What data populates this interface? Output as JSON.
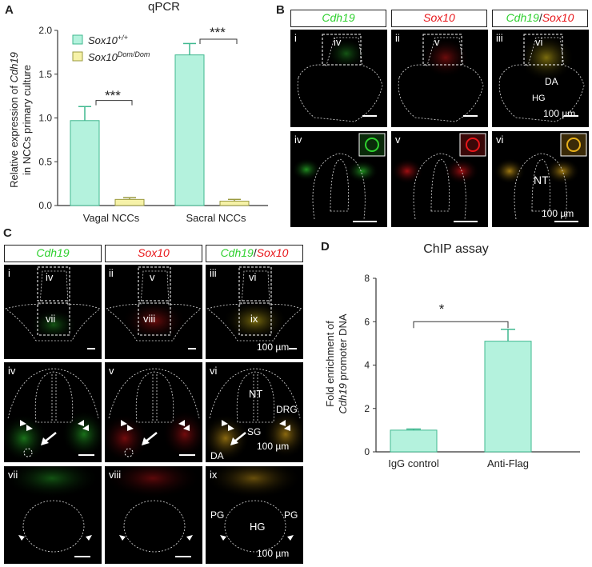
{
  "panels": {
    "A": "A",
    "B": "B",
    "C": "C",
    "D": "D"
  },
  "chartA": {
    "title": "qPCR",
    "ylabel_line1_pre": "Relative expression of ",
    "ylabel_line1_gene": "Cdh19",
    "ylabel_line2": "in NCCs primary culture",
    "legend_wt": "Sox10+/+",
    "legend_wt_base": "Sox10",
    "legend_wt_sup": "+/+",
    "legend_dom_base": "Sox10",
    "legend_dom_sup": "Dom/Dom",
    "sig1": "***",
    "sig2": "***"
  },
  "chartD": {
    "title": "ChIP assay",
    "ylabel_line1": "Fold enrichment of",
    "ylabel_line2_gene": "Cdh19",
    "ylabel_line2_rest": " promoter DNA",
    "sig": "*"
  },
  "chart_data": [
    {
      "type": "bar",
      "panel": "A",
      "title": "qPCR",
      "categories": [
        "Vagal NCCs",
        "Sacral NCCs"
      ],
      "series": [
        {
          "name": "Sox10+/+",
          "values": [
            0.97,
            1.72
          ],
          "errors": [
            0.16,
            0.13
          ],
          "color": "#b4f2dd"
        },
        {
          "name": "Sox10Dom/Dom",
          "values": [
            0.07,
            0.05
          ],
          "errors": [
            0.02,
            0.02
          ],
          "color": "#f6f2a8"
        }
      ],
      "ylabel": "Relative expression of Cdh19 in NCCs primary culture",
      "ylim": [
        0,
        2.0
      ],
      "yticks": [
        "0.0",
        "0.5",
        "1.0",
        "1.5",
        "2.0"
      ],
      "significance": [
        "***",
        "***"
      ],
      "legend": "top-left"
    },
    {
      "type": "bar",
      "panel": "D",
      "title": "ChIP assay",
      "categories": [
        "IgG control",
        "Anti-Flag"
      ],
      "values": [
        1.0,
        5.1
      ],
      "errors": [
        0.05,
        0.55
      ],
      "color": "#b4f2dd",
      "ylabel": "Fold enrichment of Cdh19 promoter DNA",
      "ylim": [
        0,
        8
      ],
      "yticks": [
        "0",
        "2",
        "4",
        "6",
        "8"
      ],
      "significance": [
        "*"
      ]
    }
  ],
  "panelB": {
    "h1_g": "Cdh19",
    "h2_r": "Sox10",
    "h3_g": "Cdh19",
    "h3_sep": "/",
    "h3_r": "Sox10",
    "top_roman": [
      "i",
      "ii",
      "iii"
    ],
    "top_box": [
      "iv",
      "v",
      "vi"
    ],
    "bottom_roman": [
      "iv",
      "v",
      "vi"
    ],
    "DA": "DA",
    "HG": "HG",
    "NT": "NT",
    "scale": "100 µm"
  },
  "panelC": {
    "h1_g": "Cdh19",
    "h2_r": "Sox10",
    "h3_g": "Cdh19",
    "h3_sep": "/",
    "h3_r": "Sox10",
    "top_roman": [
      "i",
      "ii",
      "iii"
    ],
    "top_box_a": [
      "iv",
      "v",
      "vi"
    ],
    "top_box_b": [
      "vii",
      "viii",
      "ix"
    ],
    "mid_roman": [
      "iv",
      "v",
      "vi"
    ],
    "bot_roman": [
      "vii",
      "viii",
      "ix"
    ],
    "NT": "NT",
    "DRG": "DRG",
    "SG": "SG",
    "DA": "DA",
    "PG": "PG",
    "HG": "HG",
    "scale": "100 µm"
  },
  "colors": {
    "wt_bar": "#b4f2dd",
    "dom_bar": "#f6f2a8",
    "bar_edge": "#3fb88f",
    "green": "#2fd02f",
    "red": "#e8161a"
  }
}
